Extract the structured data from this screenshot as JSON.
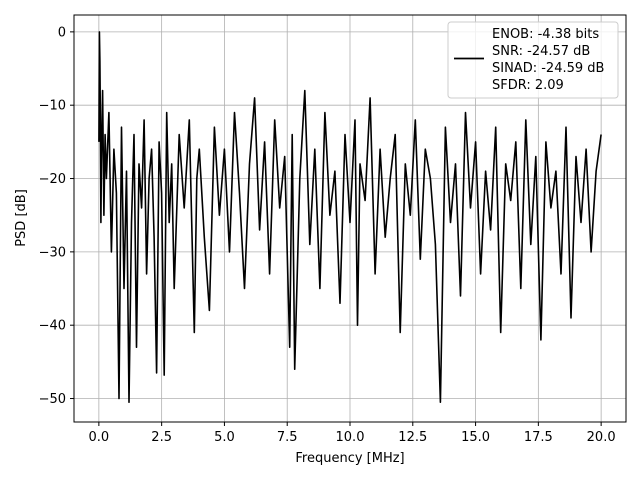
{
  "chart_data": {
    "type": "line",
    "xlabel": "Frequency [MHz]",
    "ylabel": "PSD [dB]",
    "xlim": [
      -0.99,
      20.99
    ],
    "ylim": [
      -53.2,
      2.3
    ],
    "xticks": [
      0.0,
      2.5,
      5.0,
      7.5,
      10.0,
      12.5,
      15.0,
      17.5,
      20.0
    ],
    "xtick_labels": [
      "0.0",
      "2.5",
      "5.0",
      "7.5",
      "10.0",
      "12.5",
      "15.0",
      "17.5",
      "20.0"
    ],
    "yticks": [
      0,
      -10,
      -20,
      -30,
      -40,
      -50
    ],
    "ytick_labels": [
      "0",
      "−10",
      "−20",
      "−30",
      "−40",
      "−50"
    ],
    "grid": true,
    "legend_position": "top-right",
    "legend_entries": [
      "ENOB: -4.38 bits",
      "SNR: -24.57 dB",
      "SINAD: -24.59 dB",
      "SFDR: 2.09"
    ],
    "series_color": "#000000",
    "series": [
      {
        "x": [
          0.0,
          0.02,
          0.04,
          0.06,
          0.08,
          0.1,
          0.15,
          0.2,
          0.25,
          0.3,
          0.4,
          0.5,
          0.6,
          0.7,
          0.8,
          0.9,
          1.0,
          1.1,
          1.2,
          1.3,
          1.4,
          1.5,
          1.6,
          1.7,
          1.8,
          1.9,
          2.0,
          2.1,
          2.2,
          2.3,
          2.4,
          2.5,
          2.6,
          2.7,
          2.8,
          2.9,
          3.0,
          3.2,
          3.4,
          3.6,
          3.8,
          3.9,
          4.0,
          4.2,
          4.4,
          4.6,
          4.8,
          5.0,
          5.2,
          5.4,
          5.6,
          5.8,
          6.0,
          6.2,
          6.4,
          6.6,
          6.8,
          7.0,
          7.2,
          7.4,
          7.6,
          7.7,
          7.8,
          8.0,
          8.2,
          8.4,
          8.6,
          8.8,
          9.0,
          9.2,
          9.4,
          9.6,
          9.8,
          10.0,
          10.2,
          10.3,
          10.4,
          10.6,
          10.8,
          11.0,
          11.2,
          11.4,
          11.6,
          11.8,
          12.0,
          12.2,
          12.4,
          12.6,
          12.8,
          13.0,
          13.2,
          13.4,
          13.6,
          13.8,
          14.0,
          14.2,
          14.4,
          14.6,
          14.8,
          15.0,
          15.2,
          15.4,
          15.6,
          15.8,
          16.0,
          16.2,
          16.4,
          16.6,
          16.8,
          17.0,
          17.2,
          17.4,
          17.6,
          17.8,
          18.0,
          18.2,
          18.4,
          18.6,
          18.8,
          19.0,
          19.2,
          19.4,
          19.6,
          19.8,
          20.0
        ],
        "y": [
          -15,
          0,
          -4,
          -12,
          -26,
          -18,
          -8,
          -25,
          -14,
          -20,
          -11,
          -30,
          -16,
          -22,
          -50,
          -13,
          -35,
          -19,
          -50.5,
          -26,
          -14,
          -43,
          -18,
          -24,
          -12,
          -33,
          -20,
          -16,
          -28,
          -46.5,
          -15,
          -22,
          -46.8,
          -11,
          -26,
          -18,
          -35,
          -14,
          -24,
          -12,
          -41,
          -20,
          -16,
          -28,
          -38,
          -13,
          -25,
          -16,
          -30,
          -11,
          -22,
          -35,
          -18,
          -9,
          -27,
          -15,
          -33,
          -12,
          -24,
          -17,
          -43,
          -14,
          -46,
          -20,
          -8,
          -29,
          -16,
          -35,
          -11,
          -25,
          -19,
          -37,
          -14,
          -26,
          -12,
          -40,
          -18,
          -23,
          -9,
          -33,
          -16,
          -28,
          -20,
          -14,
          -41,
          -18,
          -25,
          -12,
          -31,
          -16,
          -20,
          -29,
          -50.5,
          -13,
          -26,
          -18,
          -36,
          -11,
          -24,
          -15,
          -33,
          -19,
          -27,
          -13,
          -41,
          -18,
          -23,
          -15,
          -35,
          -12,
          -29,
          -17,
          -42,
          -15,
          -24,
          -19,
          -33,
          -13,
          -39,
          -17,
          -26,
          -16,
          -30,
          -19,
          -14
        ]
      }
    ]
  }
}
